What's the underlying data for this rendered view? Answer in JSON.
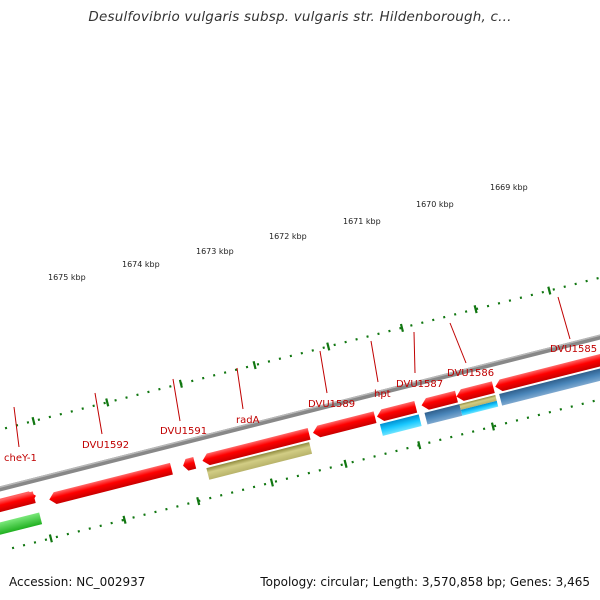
{
  "title": "Desulfovibrio vulgaris subsp. vulgaris str. Hildenborough, c...",
  "footer": {
    "accession": "Accession: NC_002937",
    "summary": "Topology: circular; Length: 3,570,858 bp; Genes: 3,465"
  },
  "scale_labels": [
    "1675 kbp",
    "1674 kbp",
    "1673 kbp",
    "1672 kbp",
    "1671 kbp",
    "1670 kbp",
    "1669 kbp"
  ],
  "gene_labels": [
    "cheY-1",
    "DVU1592",
    "DVU1591",
    "radA",
    "DVU1589",
    "hpt",
    "DVU1587",
    "DVU1586",
    "DVU1585"
  ],
  "colors": {
    "cds": "#ff0000",
    "cog_green": "#33cc33",
    "cog_olive": "#bdb76b",
    "cog_cyan": "#00ccff",
    "cog_steel": "#4682b4",
    "backbone": "#888888",
    "ticks": "#117711",
    "label": "#c00000"
  }
}
